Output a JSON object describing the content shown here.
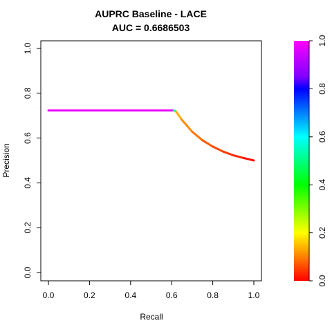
{
  "chart_data": {
    "type": "line",
    "title": "AUPRC Baseline - LACE",
    "subtitle": "AUC = 0.6686503",
    "xlabel": "Recall",
    "ylabel": "Precision",
    "xlim": [
      0,
      1
    ],
    "ylim": [
      0,
      1
    ],
    "x_ticks": [
      "0.0",
      "0.2",
      "0.4",
      "0.6",
      "0.8",
      "1.0"
    ],
    "y_ticks": [
      "0.0",
      "0.2",
      "0.4",
      "0.6",
      "0.8",
      "1.0"
    ],
    "grid": false,
    "series": [
      {
        "x": [
          0.0,
          0.61,
          0.62,
          0.65,
          0.7,
          0.75,
          0.8,
          0.85,
          0.9,
          0.95,
          1.0
        ],
        "y": [
          0.723,
          0.723,
          0.72,
          0.681,
          0.628,
          0.59,
          0.562,
          0.54,
          0.523,
          0.511,
          0.5
        ],
        "threshold": [
          1.0,
          0.95,
          0.15,
          0.12,
          0.1,
          0.08,
          0.06,
          0.05,
          0.04,
          0.02,
          0.0
        ]
      }
    ],
    "colorbar": {
      "range": [
        0,
        1
      ],
      "ticks": [
        "0.0",
        "0.2",
        "0.4",
        "0.6",
        "0.8",
        "1.0"
      ],
      "colormap": "rainbow (red to magenta)",
      "colors": [
        "#ff0000",
        "#ff8000",
        "#ffff00",
        "#80ff00",
        "#00ff00",
        "#00ff80",
        "#00ffff",
        "#0080ff",
        "#0000ff",
        "#8000ff",
        "#ff00ff"
      ]
    }
  }
}
